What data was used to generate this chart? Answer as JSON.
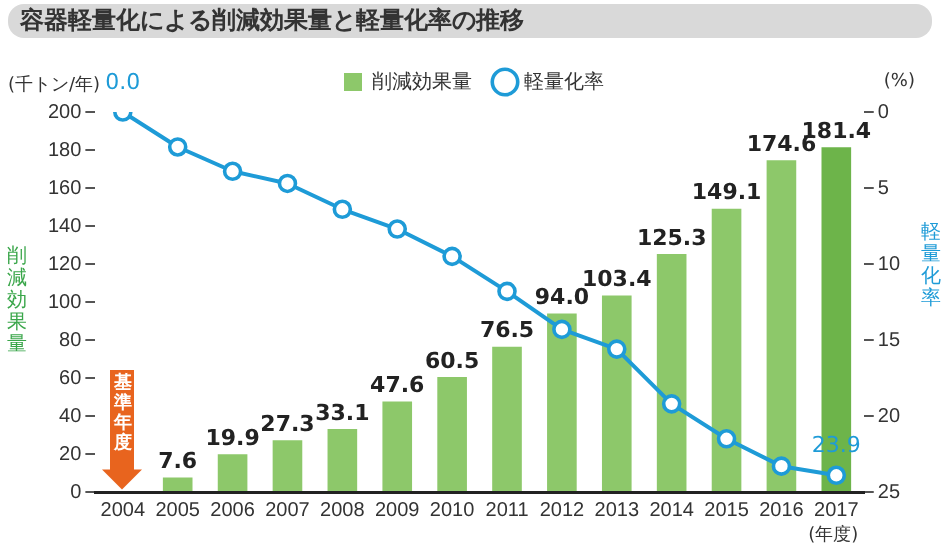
{
  "chart_data": {
    "type": "bar",
    "title": "容器軽量化による削減効果量と軽量化率の推移",
    "ylabel": "削減効果量",
    "y2label": "軽量化率",
    "categories": [
      "2004",
      "2005",
      "2006",
      "2007",
      "2008",
      "2009",
      "2010",
      "2011",
      "2012",
      "2013",
      "2014",
      "2015",
      "2016",
      "2017"
    ],
    "series": [
      {
        "name": "削減効果量",
        "colors": [
          "#8dc86a",
          "#8dc86a",
          "#8dc86a",
          "#8dc86a",
          "#8dc86a",
          "#8dc86a",
          "#8dc86a",
          "#8dc86a",
          "#8dc86a",
          "#8dc86a",
          "#8dc86a",
          "#8dc86a",
          "#8dc86a",
          "#6db44a"
        ],
        "values": [
          null,
          7.6,
          19.9,
          27.3,
          33.1,
          47.6,
          60.5,
          76.5,
          94.0,
          103.4,
          125.3,
          149.1,
          174.6,
          181.4
        ],
        "value_labels": [
          null,
          "7.6",
          "19.9",
          "27.3",
          "33.1",
          "47.6",
          "60.5",
          "76.5",
          "94.0",
          "103.4",
          "125.3",
          "149.1",
          "174.6",
          "181.4"
        ]
      },
      {
        "name": "軽量化率",
        "type": "line",
        "axis": "y2",
        "color": "#1e9bd7",
        "values": [
          0.0,
          2.3,
          3.9,
          4.7,
          6.4,
          7.7,
          9.5,
          11.8,
          14.3,
          15.6,
          19.2,
          21.5,
          23.3,
          23.9
        ],
        "value_labels": [
          "0.0",
          null,
          null,
          null,
          null,
          null,
          null,
          null,
          null,
          null,
          null,
          null,
          null,
          "23.9"
        ]
      }
    ],
    "ylim": [
      0,
      200
    ],
    "yticks": [
      0,
      20,
      40,
      60,
      80,
      100,
      120,
      140,
      160,
      180,
      200
    ],
    "y2lim": [
      25,
      0
    ],
    "y2ticks": [
      0,
      5,
      10,
      15,
      20,
      25
    ],
    "annotations": [
      "(千トン/年)",
      "(%)",
      "(年度)",
      "基準年度"
    ],
    "legend": "top",
    "grid": false,
    "marker": "circle",
    "line_style": "solid"
  }
}
